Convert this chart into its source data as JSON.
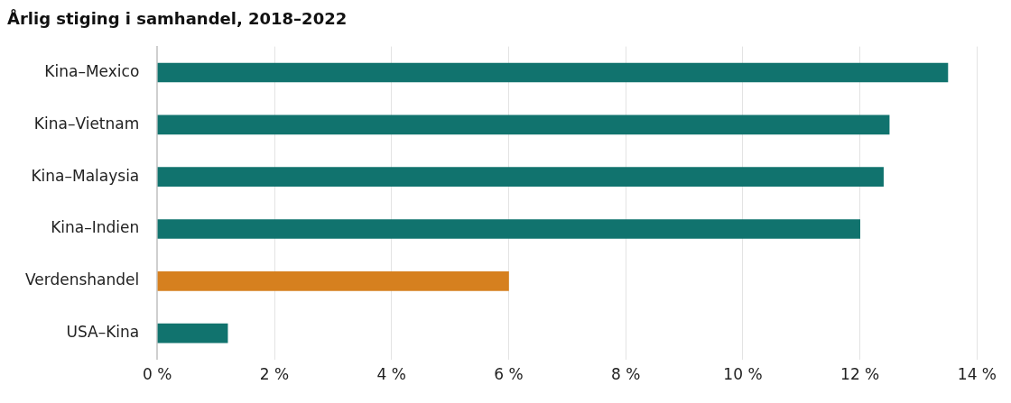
{
  "chart_data": {
    "type": "bar",
    "orientation": "horizontal",
    "title": "Årlig stiging i samhandel, 2018–2022",
    "categories": [
      "Kina–Mexico",
      "Kina–Vietnam",
      "Kina–Malaysia",
      "Kina–Indien",
      "Verdenshandel",
      "USA–Kina"
    ],
    "values": [
      13.5,
      12.5,
      12.4,
      12.0,
      6.0,
      1.2
    ],
    "colors": [
      "#11736e",
      "#11736e",
      "#11736e",
      "#11736e",
      "#d6801f",
      "#11736e"
    ],
    "xlim": [
      0,
      14
    ],
    "xticks": [
      {
        "value": 0,
        "label": "0 %"
      },
      {
        "value": 2,
        "label": "2 %"
      },
      {
        "value": 4,
        "label": "4 %"
      },
      {
        "value": 6,
        "label": "6 %"
      },
      {
        "value": 8,
        "label": "8 %"
      },
      {
        "value": 10,
        "label": "10 %"
      },
      {
        "value": 12,
        "label": "12 %"
      },
      {
        "value": 14,
        "label": "14 %"
      }
    ],
    "grid": "x",
    "legend": false
  }
}
